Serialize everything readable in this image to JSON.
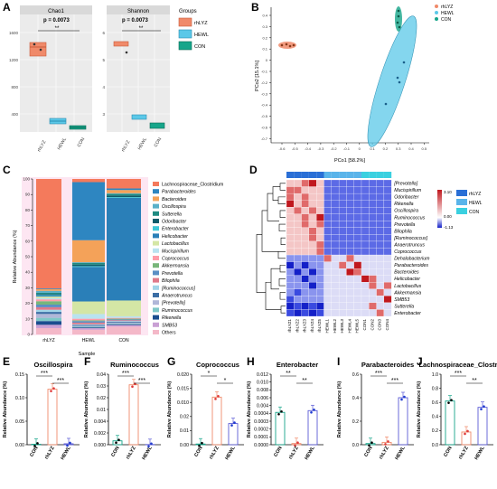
{
  "figure_letters": [
    "A",
    "B",
    "C",
    "D",
    "E",
    "F",
    "G",
    "H",
    "I",
    "J"
  ],
  "panel_a": {
    "legend_title": "Groups",
    "facets": [
      {
        "title": "Chao1",
        "p_text": "p = 0.0073",
        "sig": "**",
        "yticks": [
          "400",
          "800",
          "1200",
          "1600"
        ]
      },
      {
        "title": "Shannon",
        "p_text": "p = 0.0073",
        "sig": "**",
        "yticks": [
          "3",
          "4",
          "5",
          "6"
        ]
      }
    ],
    "groups": [
      "rhLYZ",
      "HEWL",
      "CON"
    ]
  },
  "panel_b": {
    "xlabel": "PCo1 [58.2%]",
    "ylabel": "PCo2 [15.1%]",
    "xticks": [
      "-0.6",
      "-0.5",
      "-0.4",
      "-0.3",
      "-0.2",
      "-0.1",
      "0",
      "0.1",
      "0.2",
      "0.3",
      "0.4",
      "0.5"
    ],
    "yticks": [
      "0.4",
      "0.3",
      "0.2",
      "0.1",
      "0",
      "-0.1",
      "-0.2",
      "-0.3",
      "-0.4",
      "-0.5",
      "-0.6",
      "-0.7"
    ],
    "legend": [
      "rhLYZ",
      "HEWL",
      "CON"
    ]
  },
  "panel_c": {
    "xlabel": "Sample",
    "ylabel": "Relative Abundance (%)",
    "yticks": [
      "0",
      "10",
      "20",
      "30",
      "40",
      "50",
      "60",
      "70",
      "80",
      "90",
      "100"
    ],
    "samples": [
      "rhLYZ",
      "HEWL",
      "CON"
    ],
    "legend": [
      "Lachnospiraceae_Clostridium",
      "Parabacteroides",
      "Bacteroides",
      "Oscillospira",
      "Sutterella",
      "Odoribacter",
      "Enterobacter",
      "Helicobacter",
      "Lactobacillus",
      "Mucispirillum",
      "Coprococcus",
      "Akkermansia",
      "Prevotella",
      "Bilophila",
      "[Ruminococcus]",
      "Anaerotruncus",
      "[Prevotella]",
      "Ruminococcus",
      "Rikenella",
      "SMB53",
      "Others"
    ]
  },
  "panel_d": {
    "rows": [
      "[Prevotella]",
      "Mucispirillum",
      "Odoribacter",
      "Rikenella",
      "Oscillospira",
      "Ruminococcus",
      "Prevotella",
      "Bilophila",
      "[Ruminococcus]",
      "Anaerotruncus",
      "Coprococcus",
      "Dehalobacterium",
      "Parabacteroides",
      "Bacteroides",
      "Helicobacter",
      "Lactobacillus",
      "Akkermansia",
      "SMB53",
      "Sutterella",
      "Enterobacter"
    ],
    "cols": [
      "rhLYZ1",
      "rhLYZ2",
      "rhLYZ3",
      "rhLYZ4",
      "rhLYZ5",
      "HEWL1",
      "HEWL2",
      "HEWL3",
      "HEWL4",
      "HEWL5",
      "CON1",
      "CON2",
      "CON3",
      "CON4"
    ],
    "scale": [
      "3.10",
      "0.00",
      "-1.13"
    ],
    "legend": [
      "rhLYZ",
      "HEWL",
      "CON"
    ]
  },
  "bottom": {
    "ylabel": "Relative Abundance (%)",
    "xcats": [
      "CON",
      "rhLYZ",
      "HEWL"
    ],
    "panels": [
      {
        "title": "Oscillospira",
        "yticks": [
          "0.00",
          "0.05",
          "0.10",
          "0.15"
        ],
        "sigs": [
          "***",
          "***"
        ]
      },
      {
        "title": "Ruminococcus",
        "yticks": [
          "0.000",
          "0.002",
          "0.004",
          "0.01",
          "0.02",
          "0.03",
          "0.04"
        ],
        "sigs": [
          "***",
          "***"
        ]
      },
      {
        "title": "Coprococcus",
        "yticks": [
          "0.00",
          "0.01",
          "0.02",
          "0.010",
          "0.015",
          "0.020"
        ],
        "sigs": [
          "*",
          "*"
        ]
      },
      {
        "title": "Enterobacter",
        "yticks": [
          "0.0000",
          "0.0001",
          "0.0002",
          "0.0003",
          "0.0004",
          "0.004",
          "0.006",
          "0.008",
          "0.010",
          "0.012"
        ],
        "sigs": [
          "**",
          "**"
        ]
      },
      {
        "title": "Parabacteroides",
        "yticks": [
          "0.0",
          "0.2",
          "0.4",
          "0.6"
        ],
        "sigs": [
          "***",
          "***"
        ]
      },
      {
        "title": "Lachnospiraceae_Clostridium",
        "yticks": [
          "0.0",
          "0.2",
          "0.4",
          "0.6",
          "0.8",
          "1.0"
        ],
        "sigs": [
          "***",
          "**"
        ]
      }
    ]
  },
  "colors": {
    "rhLYZ": "#f08a6a",
    "HEWL": "#5bc8e8",
    "CON": "#16a58a",
    "heat_high": "#c0181e",
    "heat_low": "#1420c8"
  },
  "chart_data": [
    {
      "type": "bar",
      "title": "Oscillospira",
      "categories": [
        "CON",
        "rhLYZ",
        "HEWL"
      ],
      "values": [
        0.001,
        0.118,
        0.002
      ],
      "ylim": [
        0,
        0.15
      ]
    },
    {
      "type": "bar",
      "title": "Ruminococcus",
      "categories": [
        "CON",
        "rhLYZ",
        "HEWL"
      ],
      "values": [
        0.0022,
        0.034,
        0.0001
      ],
      "ylim": [
        0,
        0.04
      ]
    },
    {
      "type": "bar",
      "title": "Coprococcus",
      "categories": [
        "CON",
        "rhLYZ",
        "HEWL"
      ],
      "values": [
        0.0002,
        0.0135,
        0.006
      ],
      "ylim": [
        0,
        0.02
      ]
    },
    {
      "type": "bar",
      "title": "Enterobacter",
      "categories": [
        "CON",
        "rhLYZ",
        "HEWL"
      ],
      "values": [
        0.0055,
        0.0002,
        0.0058
      ],
      "ylim": [
        0,
        0.012
      ]
    },
    {
      "type": "bar",
      "title": "Parabacteroides",
      "categories": [
        "CON",
        "rhLYZ",
        "HEWL"
      ],
      "values": [
        0.01,
        0.02,
        0.4
      ],
      "ylim": [
        0,
        0.6
      ]
    },
    {
      "type": "bar",
      "title": "Lachnospiraceae_Clostridium",
      "categories": [
        "CON",
        "rhLYZ",
        "HEWL"
      ],
      "values": [
        0.62,
        0.18,
        0.53
      ],
      "ylim": [
        0,
        1.0
      ]
    }
  ]
}
